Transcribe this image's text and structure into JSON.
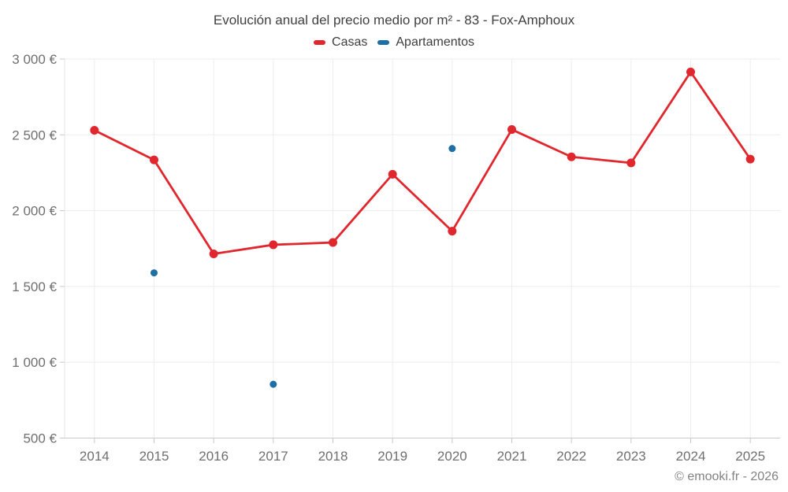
{
  "title": "Evolución anual del precio medio por m² - 83 - Fox-Amphoux",
  "footer": "© emooki.fr - 2026",
  "colors": {
    "casas": "#e1272e",
    "apartamentos": "#1d6fa5",
    "gridline": "#ededed",
    "axis_line": "#c9c9c9",
    "left_axis_line": "#e4e4e4",
    "title_text": "#404040",
    "legend_text": "#3d3d3d",
    "axis_text": "#6f6f6f",
    "footer_text": "#828282",
    "background": "#ffffff"
  },
  "chart_data": {
    "type": "line",
    "title": "Evolución anual del precio medio por m² - 83 - Fox-Amphoux",
    "categories": [
      "2014",
      "2015",
      "2016",
      "2017",
      "2018",
      "2019",
      "2020",
      "2021",
      "2022",
      "2023",
      "2024",
      "2025"
    ],
    "series": [
      {
        "name": "Casas",
        "color": "#e1272e",
        "draw_line": true,
        "line_width": 2.8,
        "marker_radius": 5.5,
        "values": [
          2530,
          2335,
          1715,
          1775,
          1790,
          2240,
          1865,
          2535,
          2355,
          2315,
          2915,
          2340
        ]
      },
      {
        "name": "Apartamentos",
        "color": "#1d6fa5",
        "draw_line": false,
        "line_width": 0,
        "marker_radius": 4.5,
        "values": [
          null,
          1590,
          null,
          855,
          null,
          null,
          2410,
          null,
          null,
          null,
          null,
          null
        ]
      }
    ],
    "xlabel": "",
    "ylabel": "",
    "ylim": [
      500,
      3000
    ],
    "yticks": [
      {
        "value": 500,
        "label": "500 €"
      },
      {
        "value": 1000,
        "label": "1 000 €"
      },
      {
        "value": 1500,
        "label": "1 500 €"
      },
      {
        "value": 2000,
        "label": "2 000 €"
      },
      {
        "value": 2500,
        "label": "2 500 €"
      },
      {
        "value": 3000,
        "label": "3 000 €"
      }
    ],
    "grid": true,
    "legend_position": "top",
    "currency": "€"
  }
}
